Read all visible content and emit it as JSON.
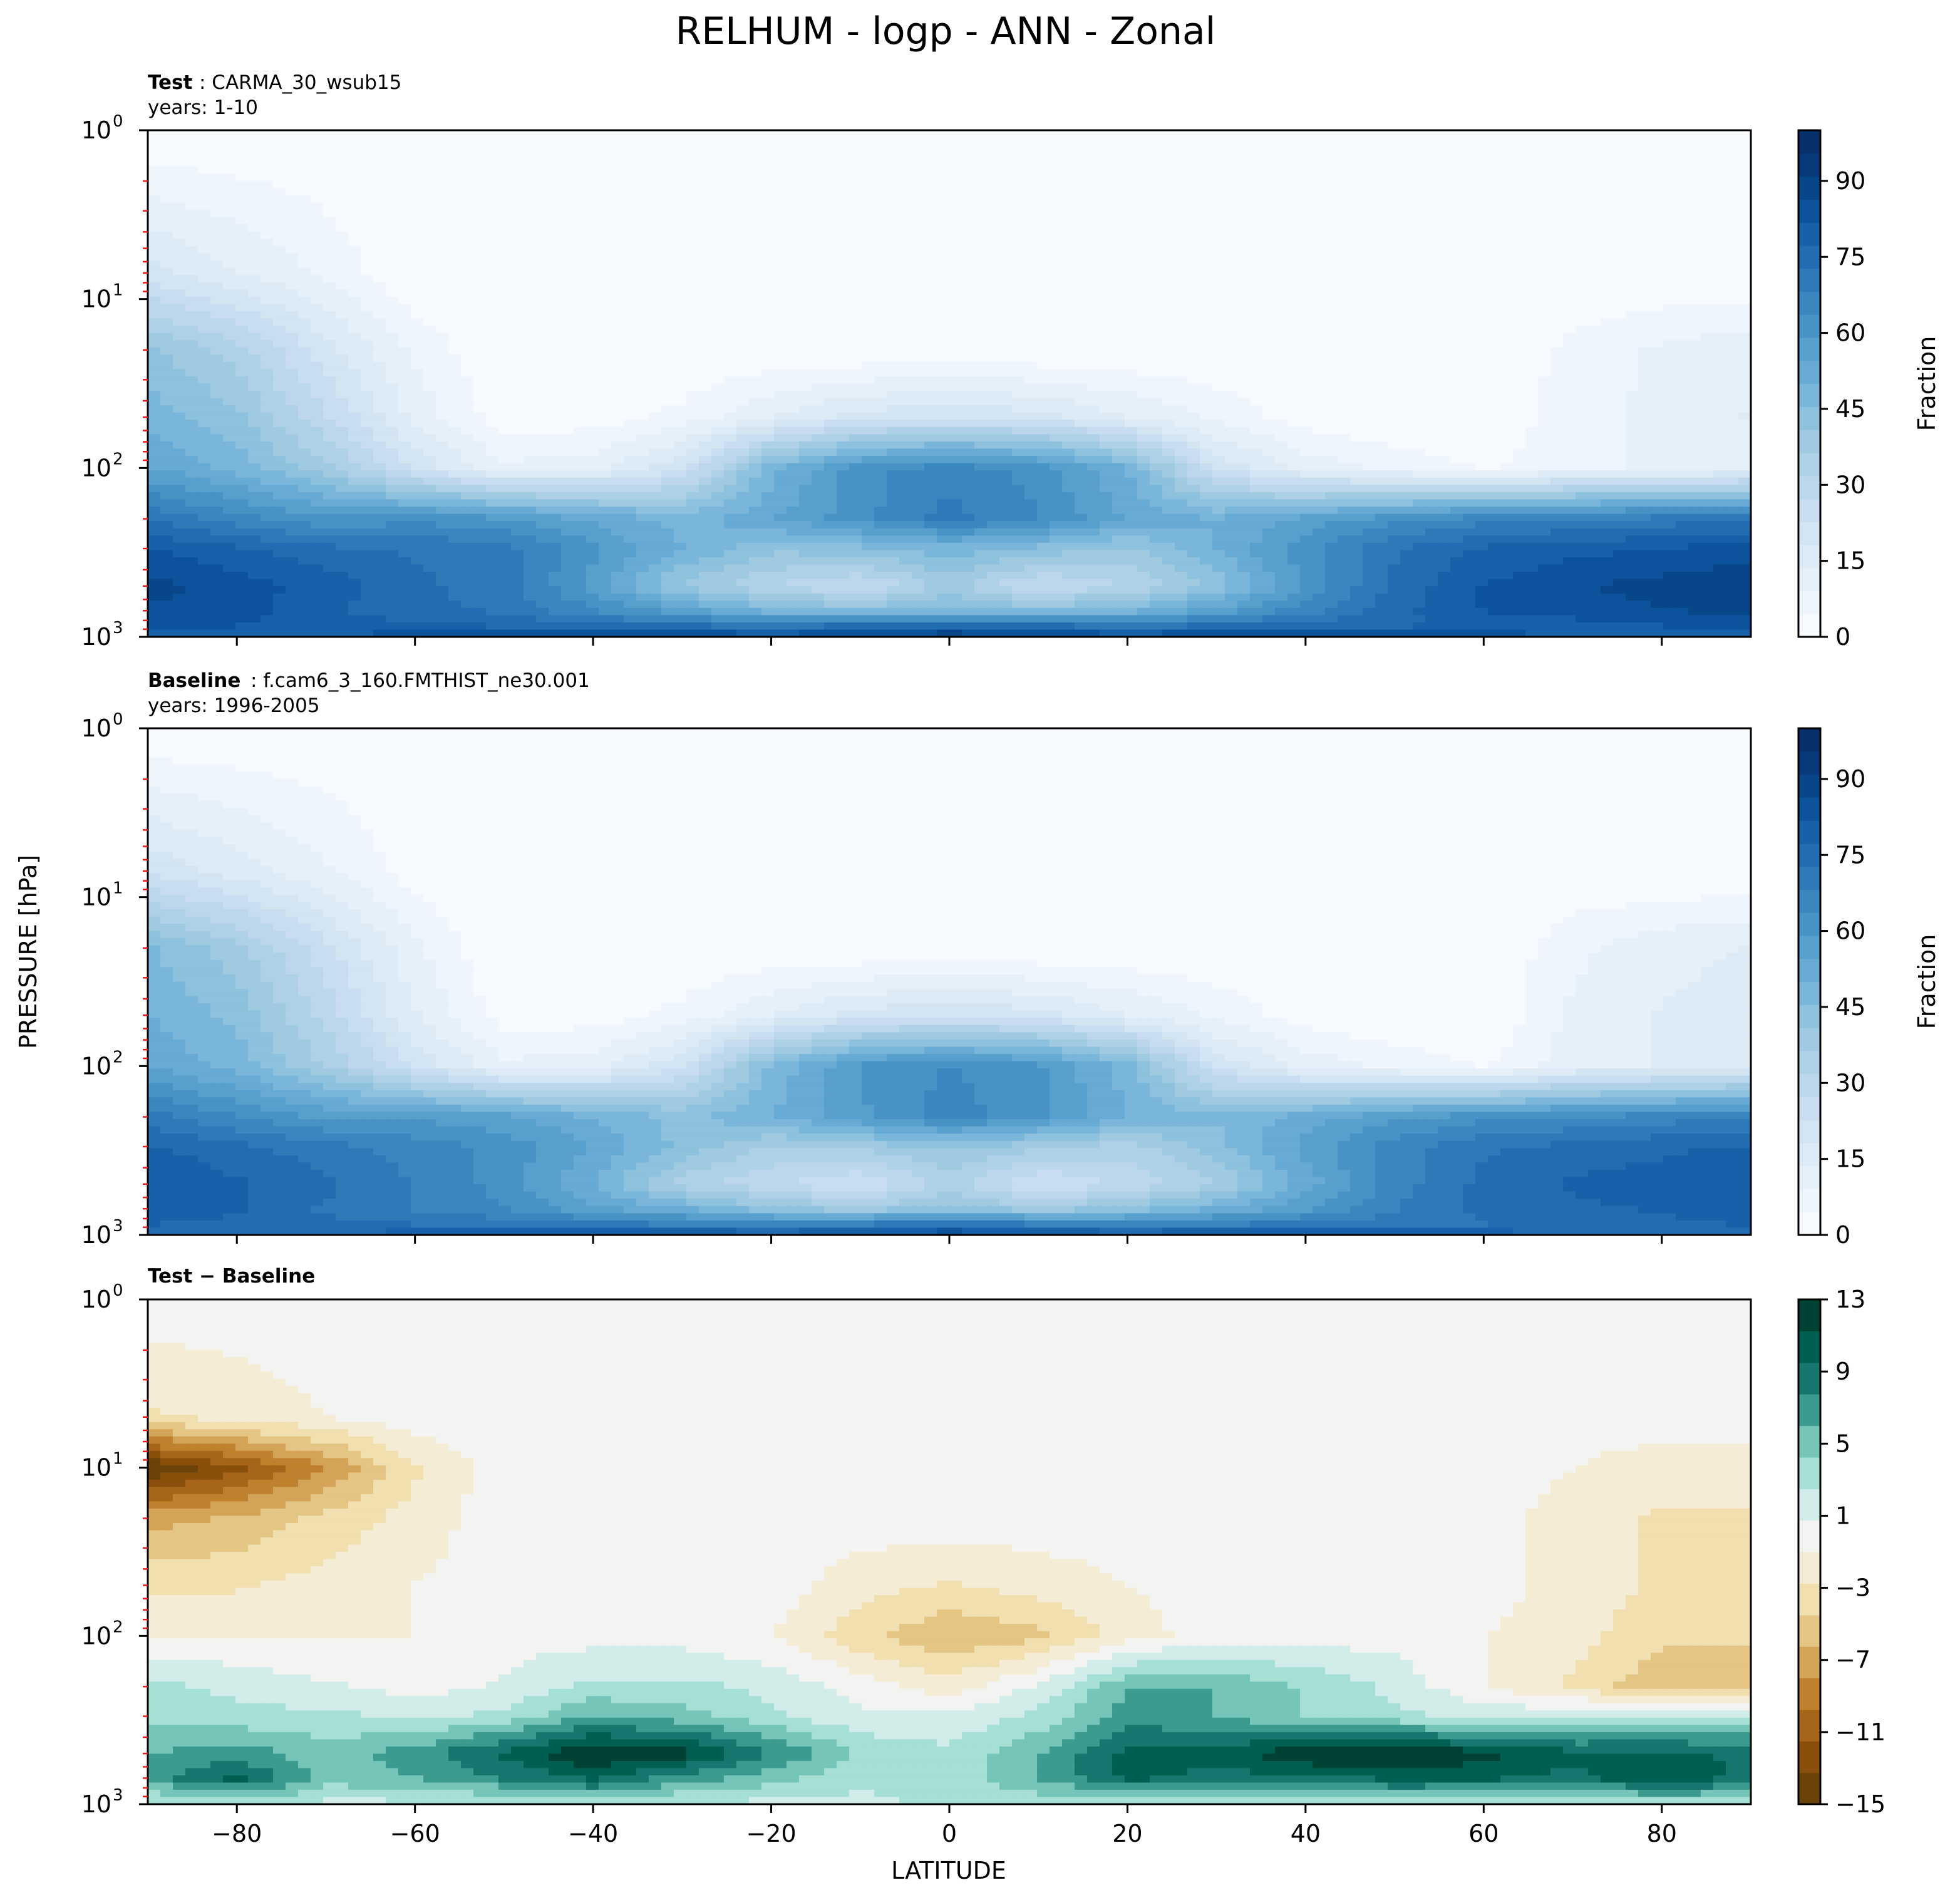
{
  "figure": {
    "title": "RELHUM - logp - ANN - Zonal",
    "shared_ylabel": "PRESSURE [hPa]",
    "shared_xlabel": "LATITUDE"
  },
  "colors": {
    "blues": [
      "#f7fbff",
      "#eff5fc",
      "#e6f0f9",
      "#ddebf7",
      "#d3e4f3",
      "#c9ddf0",
      "#bcd7eb",
      "#afd1e7",
      "#a0cae1",
      "#8dc1dd",
      "#7ab6d9",
      "#67aad4",
      "#57a0ce",
      "#4893c6",
      "#3a87bf",
      "#2e7ab9",
      "#226db1",
      "#1761a8",
      "#0d539b",
      "#08468a",
      "#083a7a",
      "#08306b"
    ],
    "brbg": [
      "#6b4208",
      "#894f0b",
      "#a66518",
      "#bf812d",
      "#d3a457",
      "#e5c583",
      "#f1dfb0",
      "#f5ecd6",
      "#f3f4f2",
      "#d2ede9",
      "#a6dfd4",
      "#75c6b8",
      "#3c9b8f",
      "#17776f",
      "#015f52",
      "#004234"
    ],
    "tick_mark_red": "#e41a1c"
  },
  "chart_data": [
    {
      "type": "contourf",
      "panel": "test",
      "label_bold": "Test",
      "label_text": ": CARMA_30_wsub15",
      "subtitle": "years: 1-10",
      "ylabel": "",
      "xlabel": "",
      "ylim": [
        1000,
        1
      ],
      "yscale": "log",
      "xlim": [
        -90,
        90
      ],
      "xticks": [
        -80,
        -60,
        -40,
        -20,
        0,
        20,
        40,
        60,
        80
      ],
      "yticks": [
        {
          "base": "10",
          "exp": "0"
        },
        {
          "base": "10",
          "exp": "1"
        },
        {
          "base": "10",
          "exp": "2"
        },
        {
          "base": "10",
          "exp": "3"
        }
      ],
      "colorbar_label": "Fraction",
      "colorbar_ticks": [
        "0",
        "15",
        "30",
        "45",
        "60",
        "75",
        "90"
      ],
      "colorbar_range": [
        0,
        100
      ],
      "colormap": "blues",
      "x": [
        -90,
        -80,
        -70,
        -60,
        -50,
        -40,
        -30,
        -20,
        -10,
        0,
        10,
        20,
        30,
        40,
        50,
        60,
        70,
        80,
        90
      ],
      "y_hpa": [
        1,
        7,
        20,
        50,
        100,
        200,
        300,
        500,
        700,
        850,
        1000
      ],
      "values": [
        [
          0,
          0,
          0,
          0,
          0,
          0,
          0,
          0,
          0,
          0,
          0,
          0,
          0,
          0,
          0,
          0,
          0,
          0,
          0
        ],
        [
          20,
          14,
          8,
          0,
          0,
          0,
          0,
          0,
          0,
          0,
          0,
          0,
          0,
          0,
          0,
          0,
          0,
          0,
          0
        ],
        [
          42,
          34,
          20,
          8,
          0,
          0,
          0,
          0,
          0,
          0,
          0,
          0,
          0,
          0,
          0,
          0,
          6,
          10,
          12
        ],
        [
          48,
          42,
          28,
          12,
          2,
          2,
          6,
          14,
          20,
          22,
          20,
          14,
          8,
          2,
          0,
          0,
          8,
          10,
          14
        ],
        [
          55,
          48,
          38,
          22,
          10,
          12,
          22,
          48,
          62,
          66,
          62,
          50,
          22,
          12,
          8,
          4,
          8,
          10,
          12
        ],
        [
          72,
          66,
          60,
          62,
          60,
          54,
          48,
          54,
          62,
          70,
          64,
          54,
          50,
          56,
          62,
          66,
          68,
          70,
          72
        ],
        [
          82,
          78,
          74,
          72,
          70,
          60,
          50,
          42,
          44,
          48,
          44,
          40,
          50,
          62,
          72,
          78,
          80,
          82,
          84
        ],
        [
          88,
          84,
          80,
          74,
          70,
          58,
          40,
          32,
          26,
          38,
          26,
          32,
          42,
          60,
          74,
          82,
          86,
          88,
          90
        ],
        [
          86,
          84,
          78,
          74,
          72,
          64,
          56,
          48,
          44,
          48,
          44,
          48,
          56,
          66,
          76,
          82,
          84,
          86,
          88
        ],
        [
          84,
          82,
          80,
          78,
          76,
          74,
          72,
          70,
          72,
          76,
          72,
          70,
          72,
          74,
          76,
          78,
          80,
          82,
          84
        ],
        [
          76,
          80,
          82,
          84,
          86,
          88,
          88,
          86,
          88,
          92,
          88,
          86,
          88,
          88,
          86,
          84,
          82,
          80,
          78
        ]
      ]
    },
    {
      "type": "contourf",
      "panel": "baseline",
      "label_bold": "Baseline",
      "label_text": ": f.cam6_3_160.FMTHIST_ne30.001",
      "subtitle": "years: 1996-2005",
      "ylabel": "",
      "xlabel": "",
      "ylim": [
        1000,
        1
      ],
      "yscale": "log",
      "xlim": [
        -90,
        90
      ],
      "xticks": [
        -80,
        -60,
        -40,
        -20,
        0,
        20,
        40,
        60,
        80
      ],
      "yticks": [
        {
          "base": "10",
          "exp": "0"
        },
        {
          "base": "10",
          "exp": "1"
        },
        {
          "base": "10",
          "exp": "2"
        },
        {
          "base": "10",
          "exp": "3"
        }
      ],
      "colorbar_label": "Fraction",
      "colorbar_ticks": [
        "0",
        "15",
        "30",
        "45",
        "60",
        "75",
        "90"
      ],
      "colorbar_range": [
        0,
        100
      ],
      "colormap": "blues",
      "x": [
        -90,
        -80,
        -70,
        -60,
        -50,
        -40,
        -30,
        -20,
        -10,
        0,
        10,
        20,
        30,
        40,
        50,
        60,
        70,
        80,
        90
      ],
      "y_hpa": [
        1,
        7,
        20,
        50,
        100,
        200,
        300,
        500,
        700,
        850,
        1000
      ],
      "values": [
        [
          0,
          0,
          0,
          0,
          0,
          0,
          0,
          0,
          0,
          0,
          0,
          0,
          0,
          0,
          0,
          0,
          0,
          0,
          0
        ],
        [
          22,
          16,
          10,
          2,
          0,
          0,
          0,
          0,
          0,
          0,
          0,
          0,
          0,
          0,
          0,
          0,
          0,
          0,
          0
        ],
        [
          46,
          38,
          24,
          10,
          0,
          0,
          0,
          0,
          0,
          0,
          0,
          0,
          0,
          0,
          0,
          0,
          8,
          12,
          14
        ],
        [
          50,
          44,
          30,
          14,
          2,
          2,
          6,
          14,
          20,
          22,
          20,
          14,
          8,
          2,
          0,
          0,
          10,
          14,
          16
        ],
        [
          54,
          48,
          36,
          22,
          10,
          12,
          22,
          46,
          60,
          64,
          60,
          48,
          22,
          12,
          8,
          4,
          12,
          14,
          16
        ],
        [
          70,
          64,
          58,
          58,
          56,
          50,
          44,
          50,
          58,
          66,
          60,
          50,
          46,
          52,
          58,
          62,
          64,
          66,
          68
        ],
        [
          78,
          74,
          70,
          66,
          62,
          54,
          44,
          36,
          38,
          42,
          38,
          34,
          44,
          56,
          66,
          72,
          74,
          76,
          78
        ],
        [
          82,
          78,
          74,
          68,
          62,
          50,
          34,
          28,
          22,
          34,
          22,
          28,
          36,
          52,
          66,
          74,
          78,
          80,
          82
        ],
        [
          80,
          78,
          72,
          68,
          64,
          56,
          50,
          42,
          38,
          42,
          38,
          42,
          50,
          58,
          68,
          74,
          76,
          78,
          80
        ],
        [
          78,
          76,
          74,
          72,
          70,
          68,
          66,
          64,
          66,
          70,
          66,
          64,
          66,
          68,
          70,
          72,
          74,
          76,
          78
        ],
        [
          72,
          76,
          78,
          80,
          82,
          84,
          84,
          82,
          84,
          88,
          84,
          82,
          84,
          84,
          82,
          80,
          78,
          76,
          74
        ]
      ]
    },
    {
      "type": "contourf",
      "panel": "difference",
      "label_bold": "Test − Baseline",
      "label_text": "",
      "subtitle": "",
      "ylabel": "",
      "xlabel": "",
      "ylim": [
        1000,
        1
      ],
      "yscale": "log",
      "xlim": [
        -90,
        90
      ],
      "xticks": [
        -80,
        -60,
        -40,
        -20,
        0,
        20,
        40,
        60,
        80
      ],
      "yticks": [
        {
          "base": "10",
          "exp": "0"
        },
        {
          "base": "10",
          "exp": "1"
        },
        {
          "base": "10",
          "exp": "2"
        },
        {
          "base": "10",
          "exp": "3"
        }
      ],
      "colorbar_label": "",
      "colorbar_ticks": [
        "−15",
        "−11",
        "−7",
        "−3",
        "1",
        "5",
        "9",
        "13"
      ],
      "colorbar_range": [
        -15,
        13
      ],
      "colormap": "brbg",
      "x": [
        -90,
        -80,
        -70,
        -60,
        -50,
        -40,
        -30,
        -20,
        -10,
        0,
        10,
        20,
        30,
        40,
        50,
        60,
        70,
        80,
        90
      ],
      "y_hpa": [
        1,
        5,
        10,
        20,
        50,
        100,
        200,
        300,
        500,
        700,
        1000
      ],
      "values": [
        [
          0,
          0,
          0,
          0,
          0,
          0,
          0,
          0,
          0,
          0,
          0,
          0,
          0,
          0,
          0,
          0,
          0,
          0,
          0
        ],
        [
          -3,
          -2,
          -1,
          0,
          0,
          0,
          0,
          0,
          0,
          0,
          0,
          0,
          0,
          0,
          0,
          0,
          0,
          0,
          0
        ],
        [
          -15,
          -12,
          -8,
          -3,
          0,
          0,
          0,
          0,
          0,
          0,
          0,
          0,
          0,
          0,
          0,
          0,
          -1,
          -2,
          -2
        ],
        [
          -7,
          -6,
          -4,
          -2,
          0,
          0,
          0,
          0,
          0,
          0,
          0,
          0,
          0,
          0,
          0,
          0,
          -2,
          -3,
          -3
        ],
        [
          -3,
          -3,
          -2,
          -1,
          0,
          0,
          0,
          0,
          -2,
          -3,
          -2,
          -1,
          0,
          0,
          0,
          0,
          -2,
          -3,
          -3
        ],
        [
          -1,
          -1,
          -1,
          -1,
          0,
          0,
          0,
          -1,
          -4,
          -6,
          -5,
          -2,
          0,
          0,
          0,
          -1,
          -2,
          -4,
          -4
        ],
        [
          3,
          2,
          1,
          0,
          1,
          3,
          3,
          2,
          0,
          -2,
          1,
          6,
          6,
          4,
          2,
          -1,
          -3,
          -6,
          -6
        ],
        [
          4,
          3,
          3,
          2,
          3,
          6,
          5,
          3,
          1,
          1,
          3,
          7,
          6,
          4,
          3,
          2,
          2,
          3,
          3
        ],
        [
          6,
          7,
          5,
          7,
          10,
          13,
          12,
          8,
          4,
          3,
          6,
          10,
          10,
          13,
          13,
          12,
          10,
          10,
          9
        ],
        [
          7,
          10,
          5,
          6,
          8,
          10,
          7,
          5,
          3,
          3,
          6,
          10,
          9,
          9,
          10,
          10,
          9,
          11,
          9
        ],
        [
          2,
          3,
          2,
          2,
          2,
          3,
          2,
          2,
          2,
          3,
          3,
          2,
          2,
          2,
          3,
          2,
          2,
          3,
          3
        ]
      ]
    }
  ]
}
